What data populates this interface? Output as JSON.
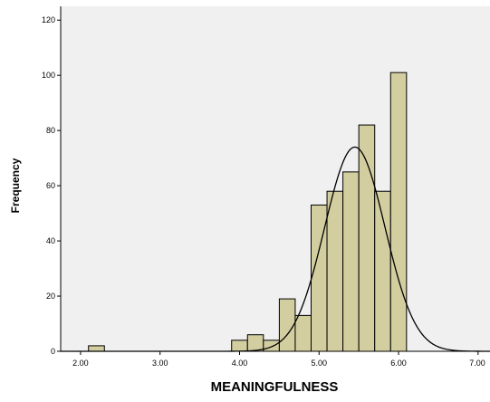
{
  "chart_data": {
    "type": "bar",
    "subtype": "histogram",
    "title": "",
    "xlabel": "MEANINGFULNESS",
    "ylabel": "Frequency",
    "xlim": [
      1.75,
      7.15
    ],
    "ylim": [
      0,
      125
    ],
    "x_ticks": [
      2.0,
      3.0,
      4.0,
      5.0,
      6.0,
      7.0
    ],
    "x_tick_labels": [
      "2.00",
      "3.00",
      "4.00",
      "5.00",
      "6.00",
      "7.00"
    ],
    "y_ticks": [
      0,
      20,
      40,
      60,
      80,
      100,
      120
    ],
    "y_tick_labels": [
      "0",
      "20",
      "40",
      "60",
      "80",
      "100",
      "120"
    ],
    "bin_width": 0.2,
    "bins": [
      {
        "x_start": 2.1,
        "x_end": 2.3,
        "count": 2
      },
      {
        "x_start": 3.9,
        "x_end": 4.1,
        "count": 4
      },
      {
        "x_start": 4.1,
        "x_end": 4.3,
        "count": 6
      },
      {
        "x_start": 4.3,
        "x_end": 4.5,
        "count": 4
      },
      {
        "x_start": 4.5,
        "x_end": 4.7,
        "count": 19
      },
      {
        "x_start": 4.7,
        "x_end": 4.9,
        "count": 13
      },
      {
        "x_start": 4.9,
        "x_end": 5.1,
        "count": 53
      },
      {
        "x_start": 5.1,
        "x_end": 5.3,
        "count": 58
      },
      {
        "x_start": 5.3,
        "x_end": 5.5,
        "count": 65
      },
      {
        "x_start": 5.5,
        "x_end": 5.7,
        "count": 82
      },
      {
        "x_start": 5.7,
        "x_end": 5.9,
        "count": 58
      },
      {
        "x_start": 5.9,
        "x_end": 6.1,
        "count": 101
      }
    ],
    "normal_curve": {
      "mean": 5.45,
      "std_dev": 0.38,
      "peak": 74
    },
    "grid": false,
    "legend": "none",
    "colors": {
      "plot_background": "#f0f0f0",
      "bar_fill": "#d3cea0",
      "bar_stroke": "#000000",
      "curve": "#000000"
    }
  }
}
